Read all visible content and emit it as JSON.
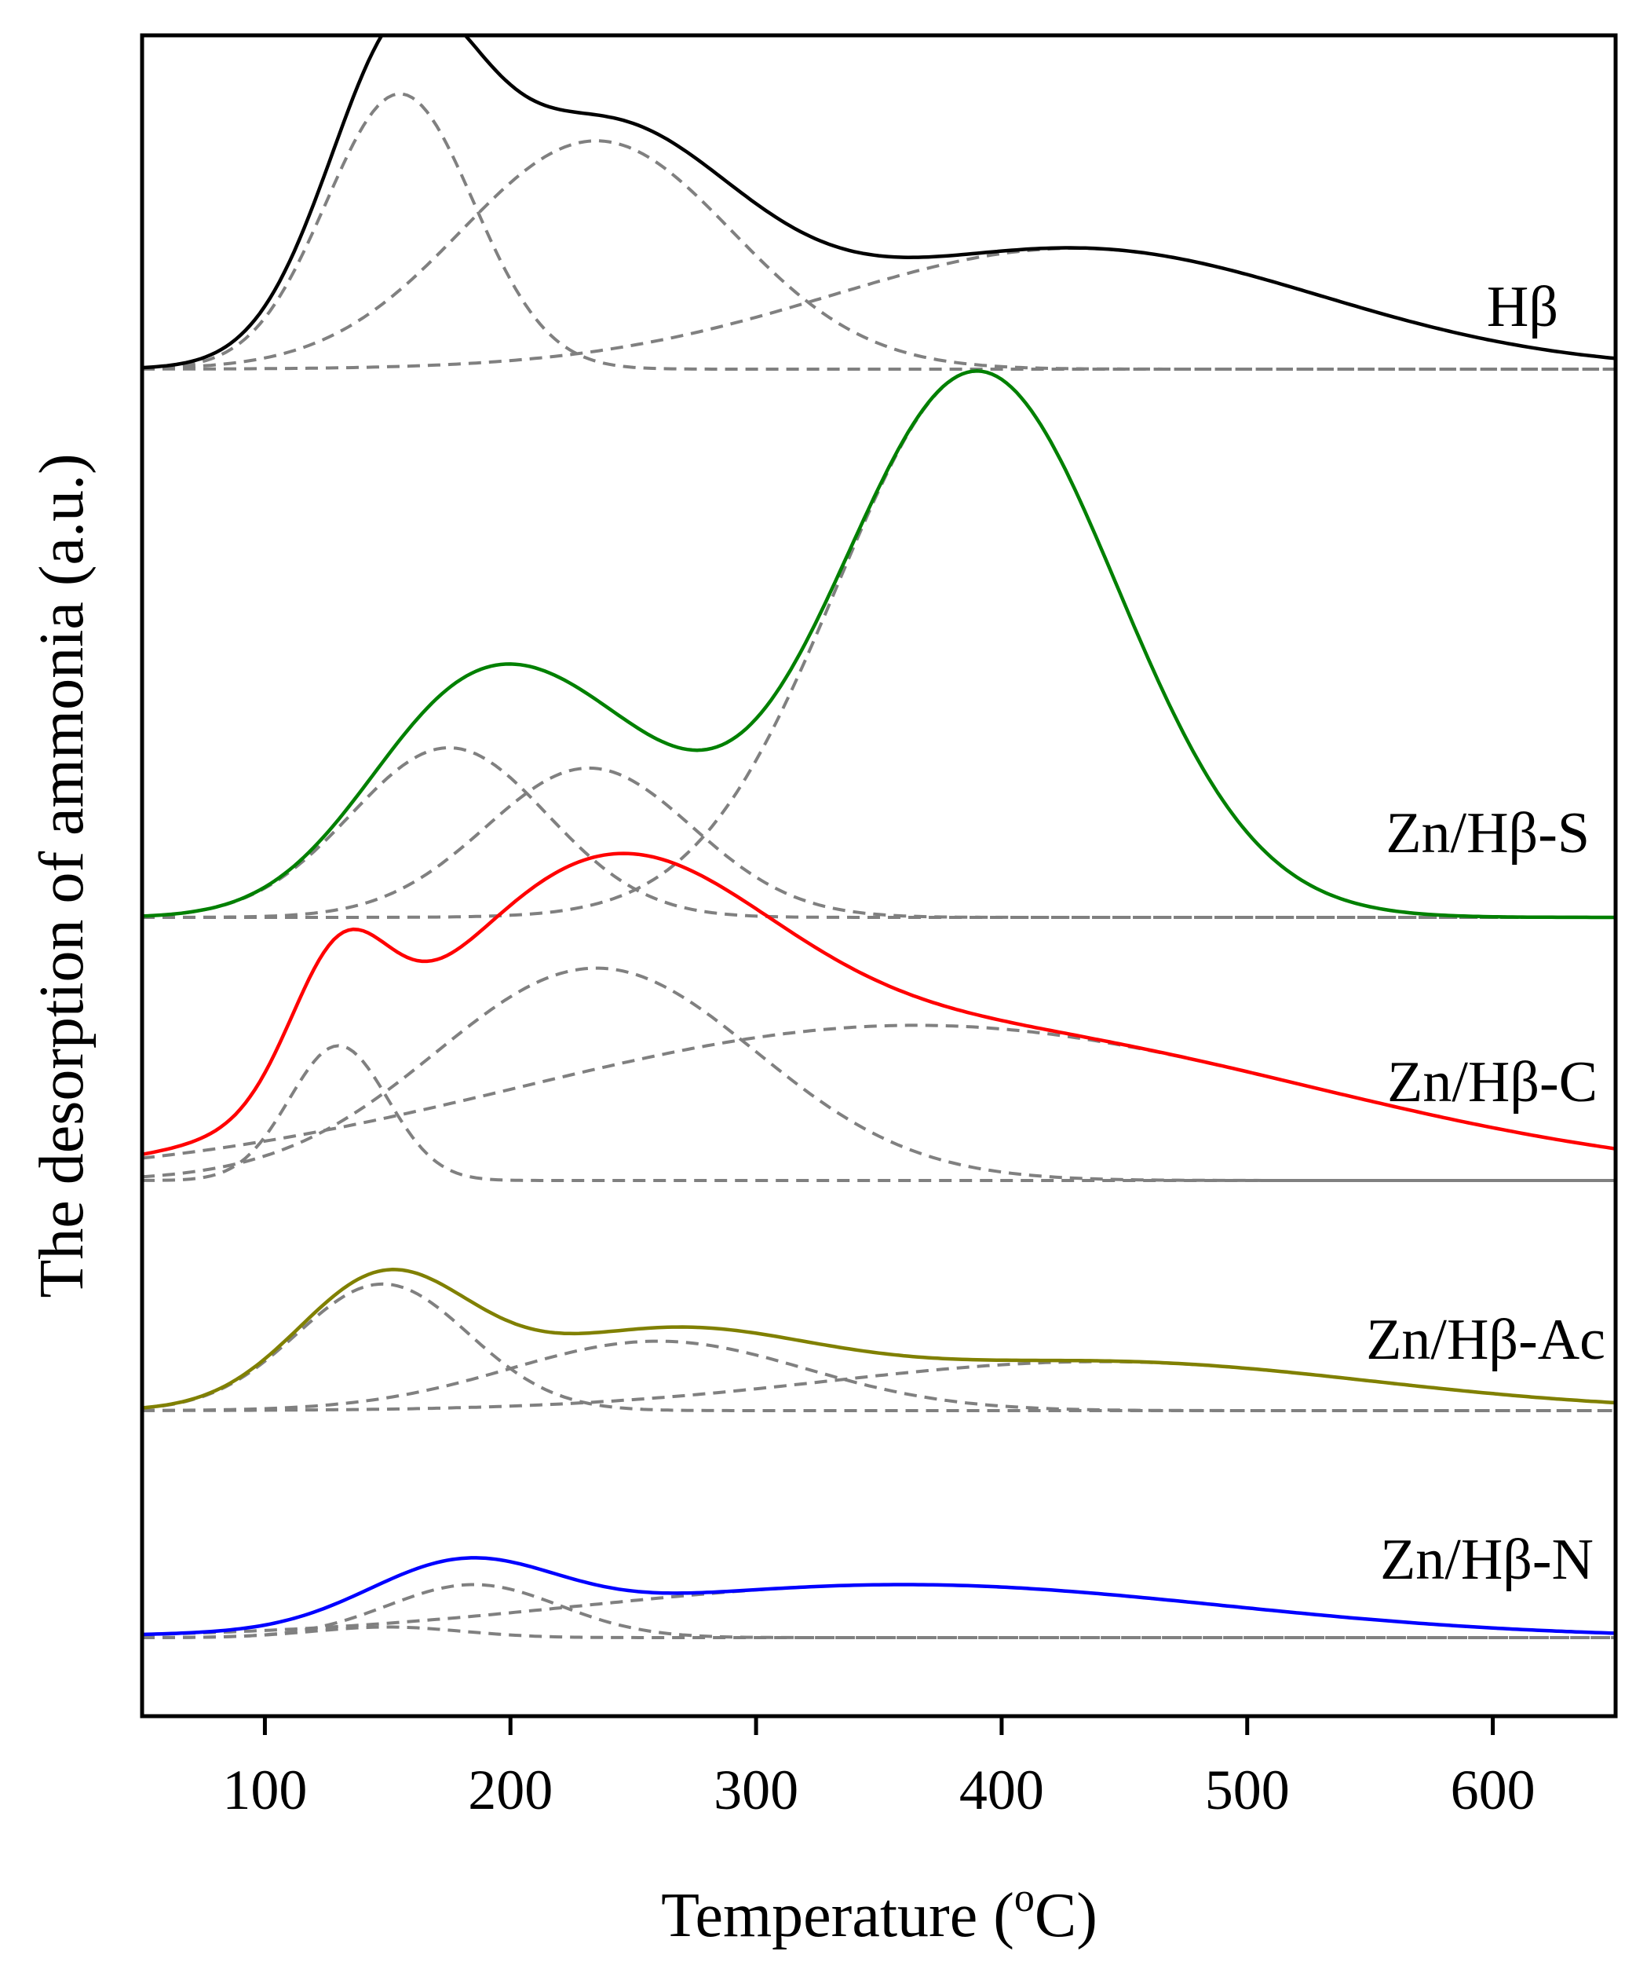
{
  "chart_data": {
    "type": "line",
    "title": "",
    "xlabel": "Temperature (°C)",
    "xlabel_parts": {
      "main": "Temperature (",
      "superscript": "o",
      "tail": "C)"
    },
    "ylabel": "The desorption of ammonia (a.u.)",
    "xlim": [
      50,
      650
    ],
    "xticks": [
      100,
      200,
      300,
      400,
      500,
      600
    ],
    "yticks_shown": false,
    "grid": false,
    "legend": "none",
    "fit_line_color": "#808080",
    "series": [
      {
        "name": "Hβ",
        "color": "#000000",
        "baseline": 0.0,
        "peaks": [
          {
            "center": 155,
            "height": 1.23,
            "width": 30
          },
          {
            "center": 235,
            "height": 1.02,
            "width": 55
          },
          {
            "center": 430,
            "height": 0.54,
            "width": 100
          }
        ]
      },
      {
        "name": "Zn/Hβ-S",
        "color": "#008000",
        "baseline": 0.0,
        "peaks": [
          {
            "center": 175,
            "height": 1.0,
            "width": 40
          },
          {
            "center": 232,
            "height": 0.88,
            "width": 42
          },
          {
            "center": 390,
            "height": 3.22,
            "width": 57
          }
        ]
      },
      {
        "name": "Zn/Hβ-C",
        "color": "#ff0000",
        "baseline": 0.0,
        "peaks": [
          {
            "center": 130,
            "height": 0.66,
            "width": 20
          },
          {
            "center": 235,
            "height": 1.04,
            "width": 65
          },
          {
            "center": 365,
            "height": 0.76,
            "width": 160
          }
        ]
      },
      {
        "name": "Zn/Hβ-Ac",
        "color": "#808000",
        "baseline": 0.0,
        "peaks": [
          {
            "center": 148,
            "height": 0.62,
            "width": 35
          },
          {
            "center": 260,
            "height": 0.34,
            "width": 60
          },
          {
            "center": 440,
            "height": 0.24,
            "width": 110
          }
        ]
      },
      {
        "name": "Zn/Hβ-N",
        "color": "#0000ff",
        "baseline": 0.0,
        "peaks": [
          {
            "center": 150,
            "height": 0.05,
            "width": 30
          },
          {
            "center": 185,
            "height": 0.25,
            "width": 35
          },
          {
            "center": 360,
            "height": 0.25,
            "width": 130
          }
        ]
      }
    ]
  }
}
